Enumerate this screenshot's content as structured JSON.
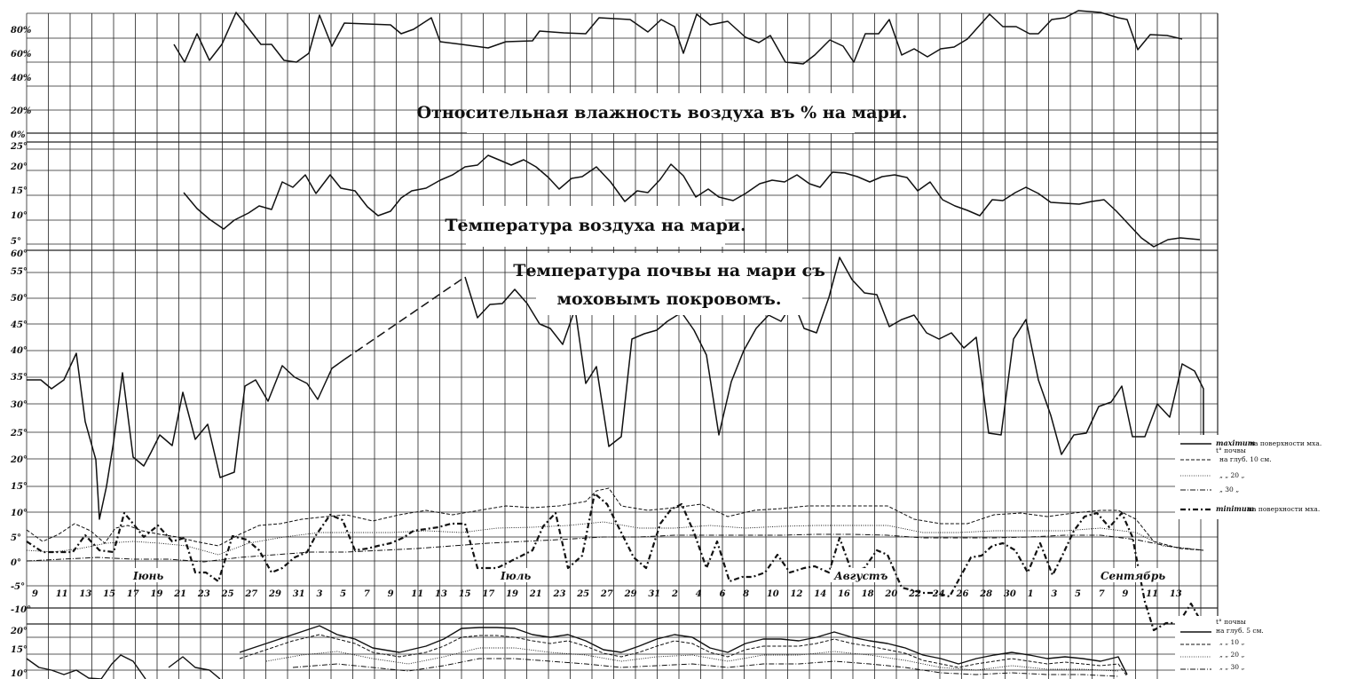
{
  "chart_data": [
    {
      "type": "line",
      "title": "Относительная влажность воздуха въ % на мари.",
      "y_ticks": [
        "80%",
        "60%",
        "40%",
        "20%",
        "0%"
      ],
      "ylim": [
        0,
        95
      ],
      "series": [
        {
          "values": [
            null,
            null,
            null,
            null,
            null,
            null,
            null,
            null,
            null,
            null,
            null,
            null,
            null,
            null,
            null,
            null,
            null,
            null,
            null,
            null,
            null,
            null,
            null,
            null,
            null,
            null,
            null,
            null,
            null,
            null,
            null,
            null,
            null,
            null,
            null,
            null,
            null,
            null,
            null,
            null,
            null,
            null,
            null,
            null,
            null,
            null,
            null,
            null,
            null,
            null,
            null,
            null,
            null,
            null,
            null,
            null,
            null,
            null,
            null,
            null,
            null,
            null,
            null,
            null,
            null,
            null,
            null,
            null,
            null,
            null,
            null,
            null,
            null,
            null,
            null,
            null,
            null,
            null,
            null,
            null,
            null,
            null,
            null,
            null,
            null,
            null,
            null,
            null,
            null,
            null,
            null,
            null,
            null,
            null,
            null,
            null,
            null,
            null,
            null,
            null,
            null,
            null,
            null,
            null,
            null,
            null,
            null,
            null,
            null,
            null,
            null,
            null,
            null,
            null,
            null,
            null,
            null,
            null,
            null,
            null
          ]
        }
      ]
    },
    {
      "type": "line",
      "title": "Температура воздуха на мари.",
      "y_ticks": [
        "25°",
        "20°",
        "15°",
        "10°",
        "5°"
      ]
    },
    {
      "type": "line",
      "title": "Температура почвы на мари съ моховымъ покровомъ.",
      "title_lines": [
        "Температура почвы на мари съ",
        "моховымъ покровомъ."
      ],
      "y_ticks": [
        "60°",
        "55°",
        "50°",
        "45°",
        "40°",
        "35°",
        "30°",
        "25°",
        "20°",
        "15°",
        "10°",
        "5°",
        "0°",
        "-5°",
        "-10°"
      ],
      "x_dates": [
        "9",
        "11",
        "13",
        "15",
        "17",
        "19",
        "21",
        "23",
        "25",
        "27",
        "29",
        "31",
        "3",
        "5",
        "7",
        "9",
        "11",
        "13",
        "15",
        "17",
        "19",
        "21",
        "23",
        "25",
        "27",
        "29",
        "31",
        "2",
        "4",
        "6",
        "8",
        "10",
        "12",
        "14",
        "16",
        "18",
        "20",
        "22",
        "24",
        "26",
        "28",
        "30",
        "1",
        "3",
        "5",
        "7",
        "9",
        "11",
        "13"
      ],
      "months": [
        "Іюнь",
        "Іюль",
        "Августъ",
        "Сентябрь"
      ],
      "legend": {
        "max_label": "maximum",
        "max_rest": "на поверхности мха.",
        "t_label": "t° почвы",
        "depth_10": "на глуб. 10 см.",
        "depth_20": "„ „ 20 „",
        "depth_30": "„ 30 „",
        "min_label": "minimum",
        "min_rest": "на поверхности мха."
      }
    },
    {
      "type": "line",
      "y_ticks": [
        "20°",
        "15°",
        "10°"
      ],
      "legend": {
        "t_label": "t° почвы",
        "depth_5": "на глуб. 5 см.",
        "depth_10": "„ „ 10 „",
        "depth_20": "„ „ 20 „",
        "depth_30": "„ „ 30 „"
      }
    }
  ]
}
